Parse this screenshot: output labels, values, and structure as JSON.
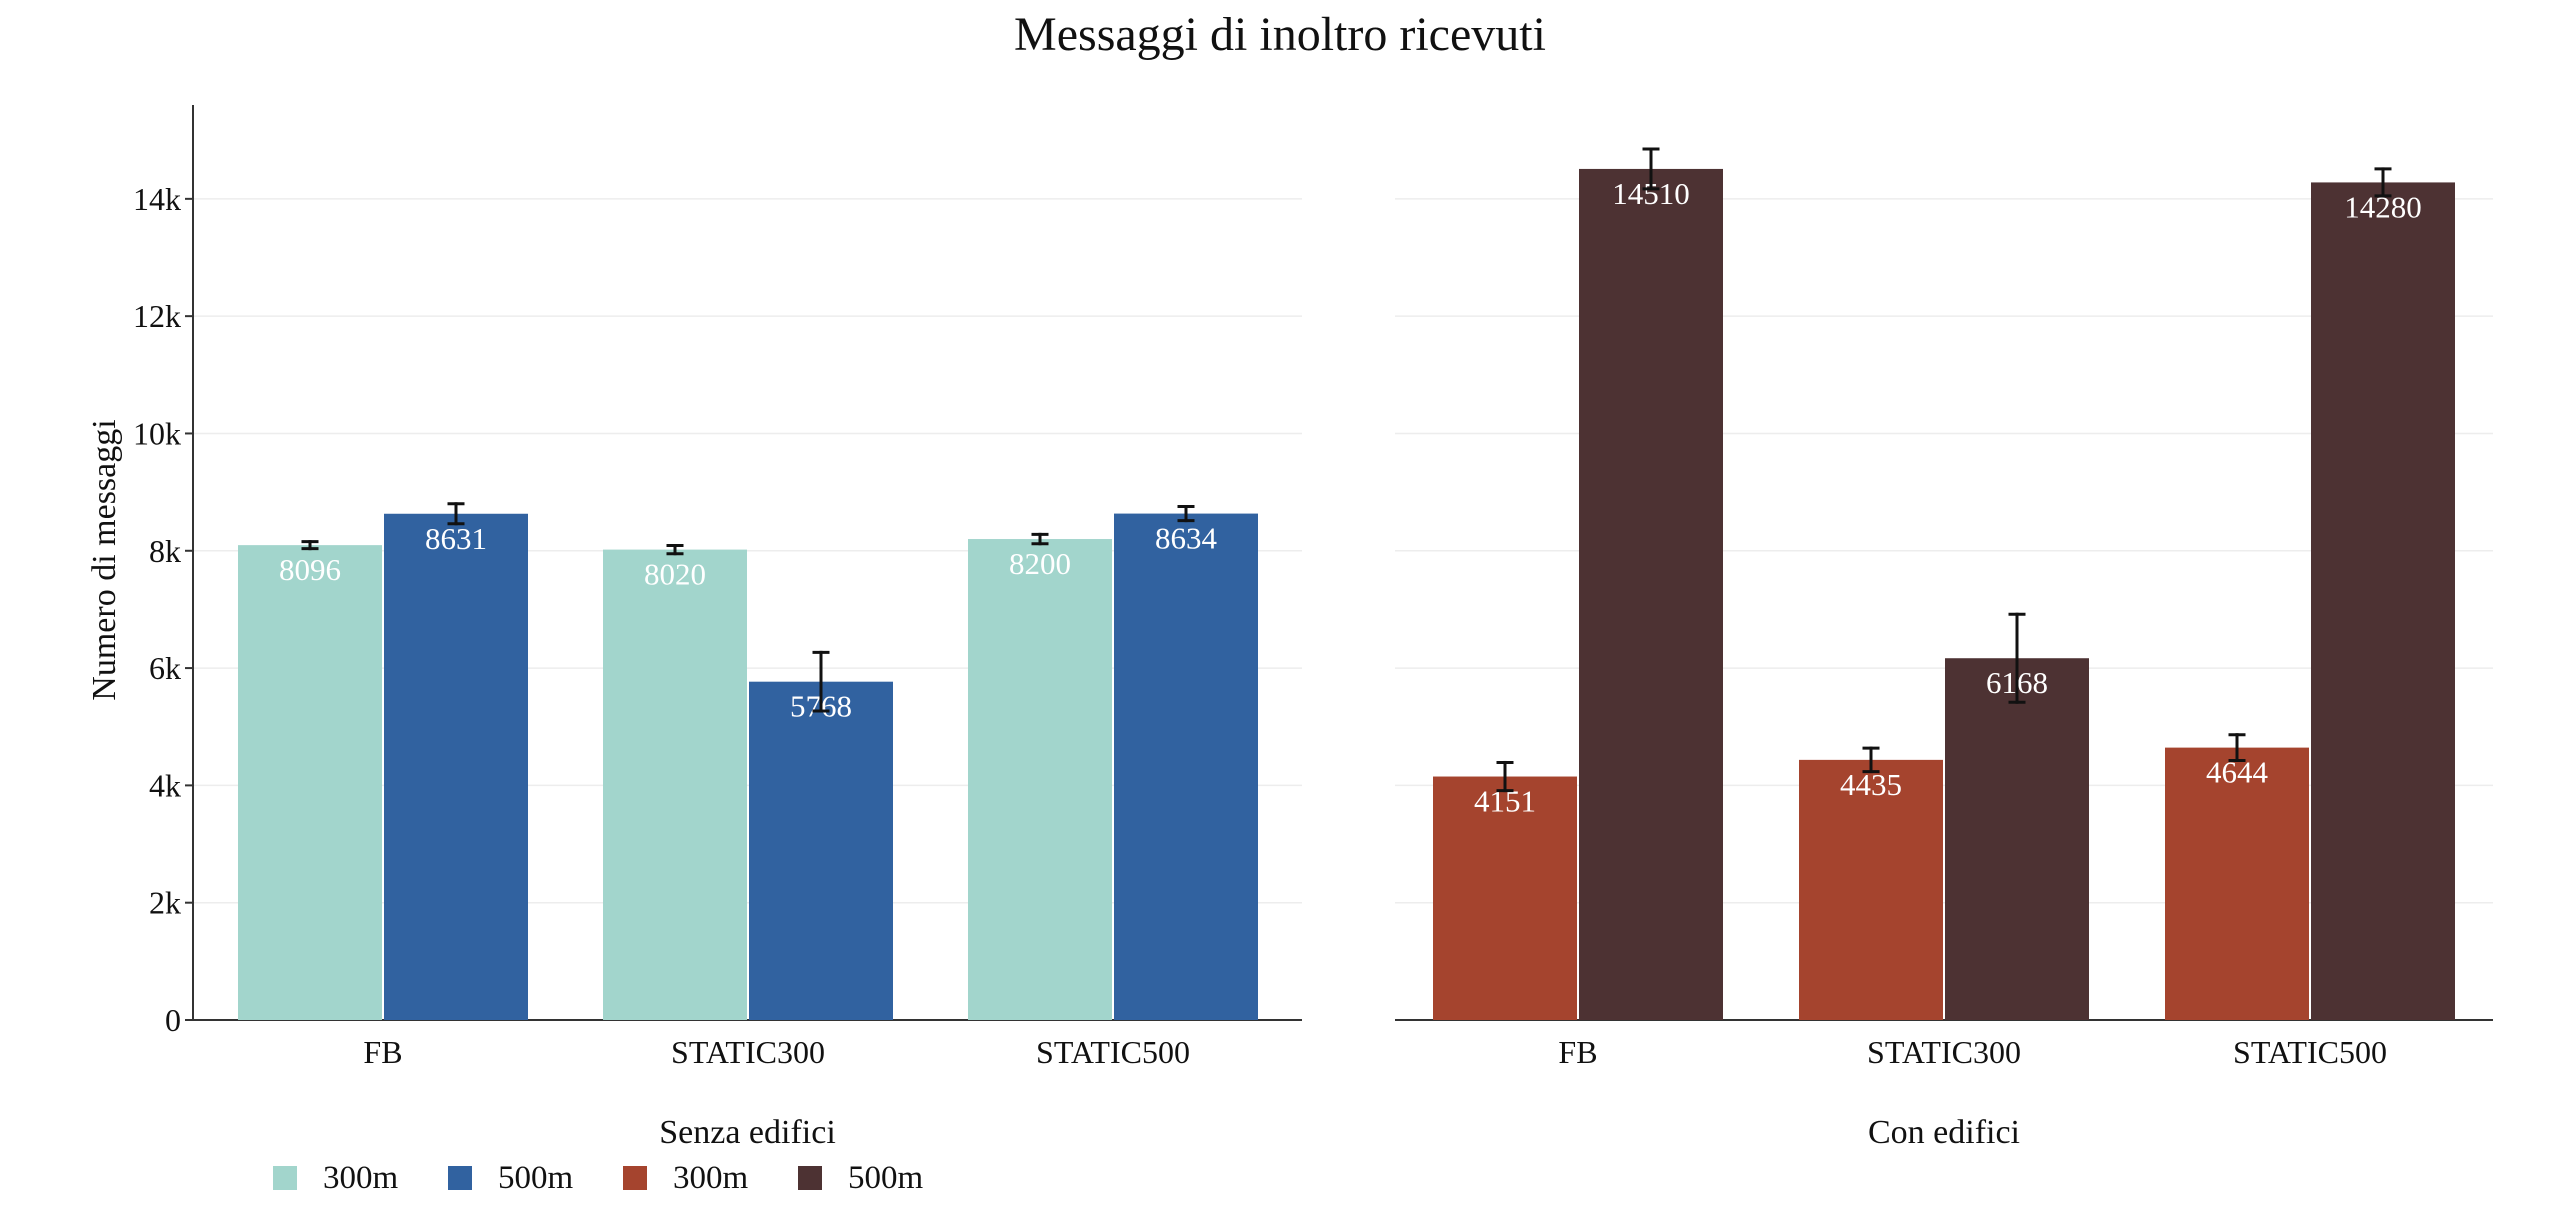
{
  "chart_data": [
    {
      "type": "bar",
      "title": "Messaggi di inoltro ricevuti",
      "ylabel": "Numero di messaggi",
      "xlabel": "Senza edifici",
      "ylim": [
        0,
        15600
      ],
      "yticks": [
        0,
        2000,
        4000,
        6000,
        8000,
        10000,
        12000,
        14000
      ],
      "ytick_labels": [
        "0",
        "2k",
        "4k",
        "6k",
        "8k",
        "10k",
        "12k",
        "14k"
      ],
      "grid": true,
      "categories": [
        "FB",
        "STATIC300",
        "STATIC500"
      ],
      "series": [
        {
          "name": "300m",
          "color": "#a2d5cc",
          "values": [
            8096,
            8020,
            8200
          ],
          "errors": [
            60,
            70,
            80
          ],
          "labels": [
            "8096",
            "8020",
            "8200"
          ]
        },
        {
          "name": "500m",
          "color": "#3162a0",
          "values": [
            8631,
            5768,
            8634
          ],
          "errors": [
            170,
            500,
            120
          ],
          "labels": [
            "8631",
            "5768",
            "8634"
          ]
        }
      ]
    },
    {
      "type": "bar",
      "xlabel": "Con edifici",
      "ylim": [
        0,
        15600
      ],
      "grid": true,
      "categories": [
        "FB",
        "STATIC300",
        "STATIC500"
      ],
      "series": [
        {
          "name": "300m",
          "color": "#a5442e",
          "values": [
            4151,
            4435,
            4644
          ],
          "errors": [
            240,
            200,
            220
          ],
          "labels": [
            "4151",
            "4435",
            "4644"
          ]
        },
        {
          "name": "500m",
          "color": "#4d3233",
          "values": [
            14510,
            6168,
            14280
          ],
          "errors": [
            340,
            750,
            230
          ],
          "labels": [
            "14510",
            "6168",
            "14280"
          ]
        }
      ]
    }
  ],
  "legend": {
    "position": "bottom-left",
    "items": [
      {
        "label": "300m",
        "color": "#a2d5cc"
      },
      {
        "label": "500m",
        "color": "#3162a0"
      },
      {
        "label": "300m",
        "color": "#a5442e"
      },
      {
        "label": "500m",
        "color": "#4d3233"
      }
    ]
  }
}
